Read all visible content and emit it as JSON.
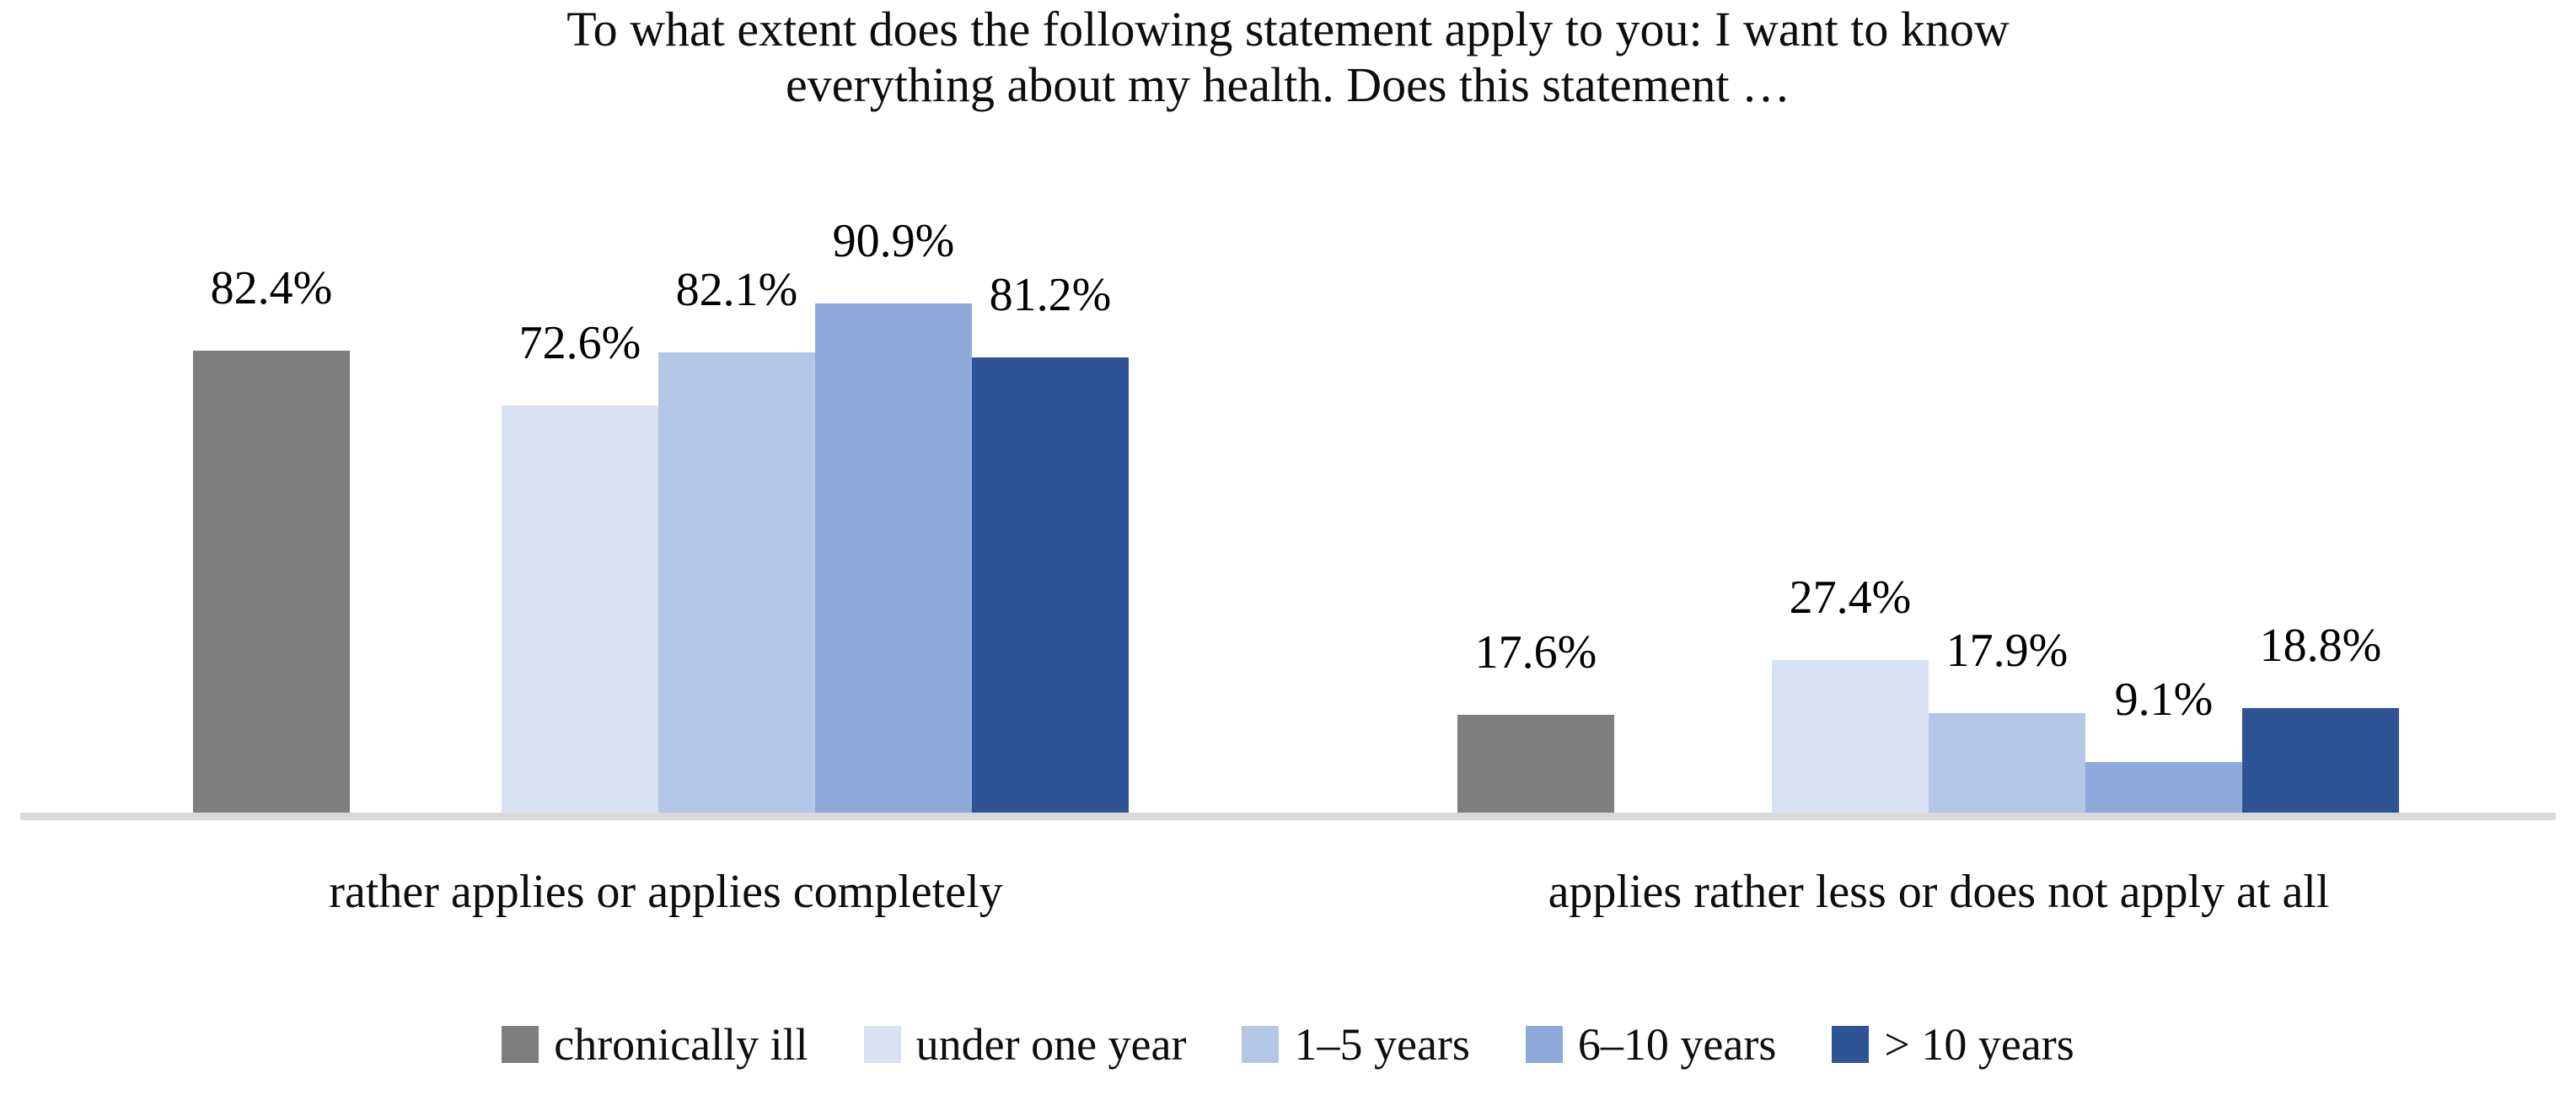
{
  "chart_data": {
    "type": "bar",
    "title": "To what extent does the following statement apply to you: I want to know everything about my health. Does this statement …",
    "title_lines": [
      "To what extent does the following statement apply to you: I want to know",
      "everything about my health. Does this statement …"
    ],
    "categories": [
      "rather applies or applies completely",
      "applies rather less or does not apply at all"
    ],
    "series": [
      {
        "name": "chronically ill",
        "color": "#7F7F7F",
        "values": [
          82.4,
          17.6
        ],
        "labels": [
          "82.4%",
          "17.6%"
        ]
      },
      {
        "name": "under one year",
        "color": "#D9E2F3",
        "values": [
          72.6,
          27.4
        ],
        "labels": [
          "72.6%",
          "27.4%"
        ]
      },
      {
        "name": "1–5 years",
        "color": "#B4C7E7",
        "values": [
          82.1,
          17.9
        ],
        "labels": [
          "82.1%",
          "17.9%"
        ]
      },
      {
        "name": "6–10 years",
        "color": "#8EAADB",
        "values": [
          90.9,
          9.1
        ],
        "labels": [
          "90.9%",
          "9.1%"
        ]
      },
      {
        "name": "> 10 years",
        "color": "#2F5496",
        "values": [
          81.2,
          18.8
        ],
        "labels": [
          "81.2%",
          "18.8%"
        ]
      }
    ],
    "xlabel": "",
    "ylabel": "",
    "ylim": [
      0,
      100
    ],
    "value_unit": "percent",
    "gridlines": false,
    "y_axis_visible": false,
    "axis_line_color": "#D9D9D9",
    "legend_position": "bottom"
  }
}
